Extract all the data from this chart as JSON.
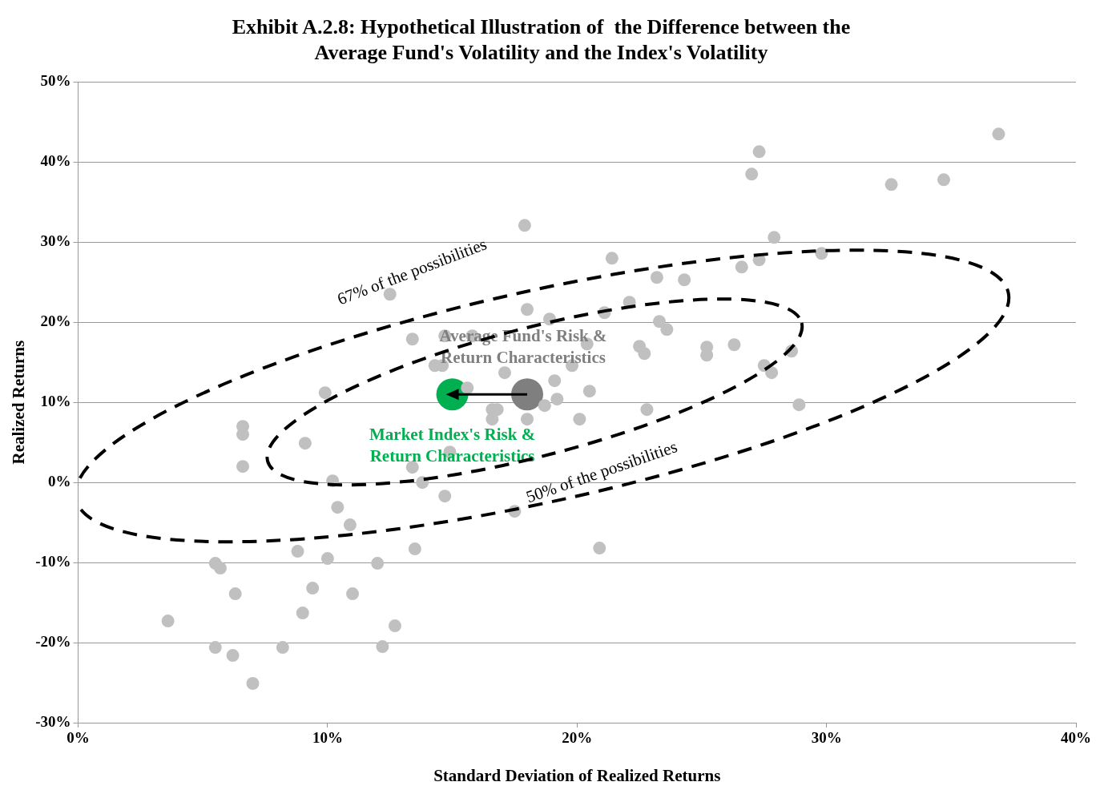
{
  "chart_data": {
    "type": "scatter",
    "title": "Exhibit A.2.8: Hypothetical Illustration of  the Difference between the Average Fund's Volatility and the Index's Volatility",
    "xlabel": "Standard Deviation of Realized Returns",
    "ylabel": "Realized Returns",
    "xlim": [
      0,
      40
    ],
    "xticks": [
      {
        "value": 0,
        "label": "0%"
      },
      {
        "value": 10,
        "label": "10%"
      },
      {
        "value": 20,
        "label": "20%"
      },
      {
        "value": 30,
        "label": "30%"
      },
      {
        "value": 40,
        "label": "40%"
      }
    ],
    "ylim": [
      -30,
      50
    ],
    "yticks": [
      {
        "value": -30,
        "label": "-30%"
      },
      {
        "value": -20,
        "label": "-20%"
      },
      {
        "value": -10,
        "label": "-10%"
      },
      {
        "value": 0,
        "label": "0%"
      },
      {
        "value": 10,
        "label": "10%"
      },
      {
        "value": 20,
        "label": "20%"
      },
      {
        "value": 30,
        "label": "30%"
      },
      {
        "value": 40,
        "label": "40%"
      },
      {
        "value": 50,
        "label": "50%"
      }
    ],
    "grid": "y",
    "legend": false,
    "marker": "circle",
    "series": [
      {
        "color": "#c0c0c0",
        "x": [
          3.6,
          5.5,
          5.7,
          5.5,
          6.2,
          6.3,
          7.0,
          6.6,
          6.6,
          6.6,
          8.8,
          8.2,
          9.0,
          9.4,
          9.1,
          9.9,
          10.0,
          10.2,
          10.4,
          10.9,
          11.0,
          12.0,
          12.2,
          12.5,
          12.7,
          13.4,
          13.4,
          13.5,
          13.8,
          14.3,
          14.6,
          14.7,
          14.7,
          14.9,
          15.6,
          15.8,
          16.6,
          17.1,
          19.1,
          19.2,
          18.7,
          16.8,
          16.6,
          18.0,
          20.1,
          20.5,
          22.8,
          17.9,
          21.4,
          23.2,
          24.3,
          18.0,
          18.9,
          21.1,
          22.1,
          23.3,
          23.6,
          22.5,
          22.7,
          25.2,
          25.2,
          20.4,
          19.8,
          17.5,
          20.9,
          27.3,
          27.0,
          32.6,
          34.7,
          36.9,
          27.9,
          29.8,
          27.3,
          26.6,
          26.3,
          28.6,
          27.5,
          27.8,
          28.9
        ],
        "values": [
          -17.3,
          -10.1,
          -10.7,
          -20.6,
          -21.6,
          -13.9,
          -25.1,
          7.0,
          6.0,
          2.0,
          -8.6,
          -20.6,
          -16.3,
          -13.2,
          4.9,
          11.2,
          -9.5,
          0.2,
          -3.1,
          -5.3,
          -13.9,
          -10.1,
          -20.5,
          23.5,
          -17.9,
          17.9,
          1.9,
          -8.3,
          0,
          14.6,
          14.6,
          18.3,
          -1.7,
          3.8,
          11.8,
          18.3,
          9.1,
          13.7,
          12.7,
          10.4,
          9.6,
          9.1,
          7.9,
          7.9,
          7.9,
          11.4,
          9.1,
          32.1,
          28.0,
          25.6,
          25.3,
          21.6,
          20.4,
          21.2,
          22.5,
          20.1,
          19.1,
          17.0,
          16.1,
          16.9,
          15.9,
          17.3,
          14.6,
          -3.6,
          -8.2,
          41.3,
          38.5,
          37.2,
          37.8,
          43.5,
          30.6,
          28.6,
          27.8,
          26.9,
          17.2,
          16.4,
          14.6,
          13.7,
          9.7
        ]
      },
      {
        "color": "#7f7f7f",
        "x": [
          18
        ],
        "values": [
          11
        ]
      },
      {
        "color": "#00b050",
        "x": [
          15
        ],
        "values": [
          11
        ]
      }
    ],
    "annotations": [
      {
        "text": "Average Fund's Risk & Return Characteristics",
        "x": 18,
        "y": 11
      },
      {
        "text": "Market Index's Risk & Return Characteristics",
        "x": 15,
        "y": 11
      },
      "67% of the possibilities",
      "50% of the possibilities"
    ]
  }
}
